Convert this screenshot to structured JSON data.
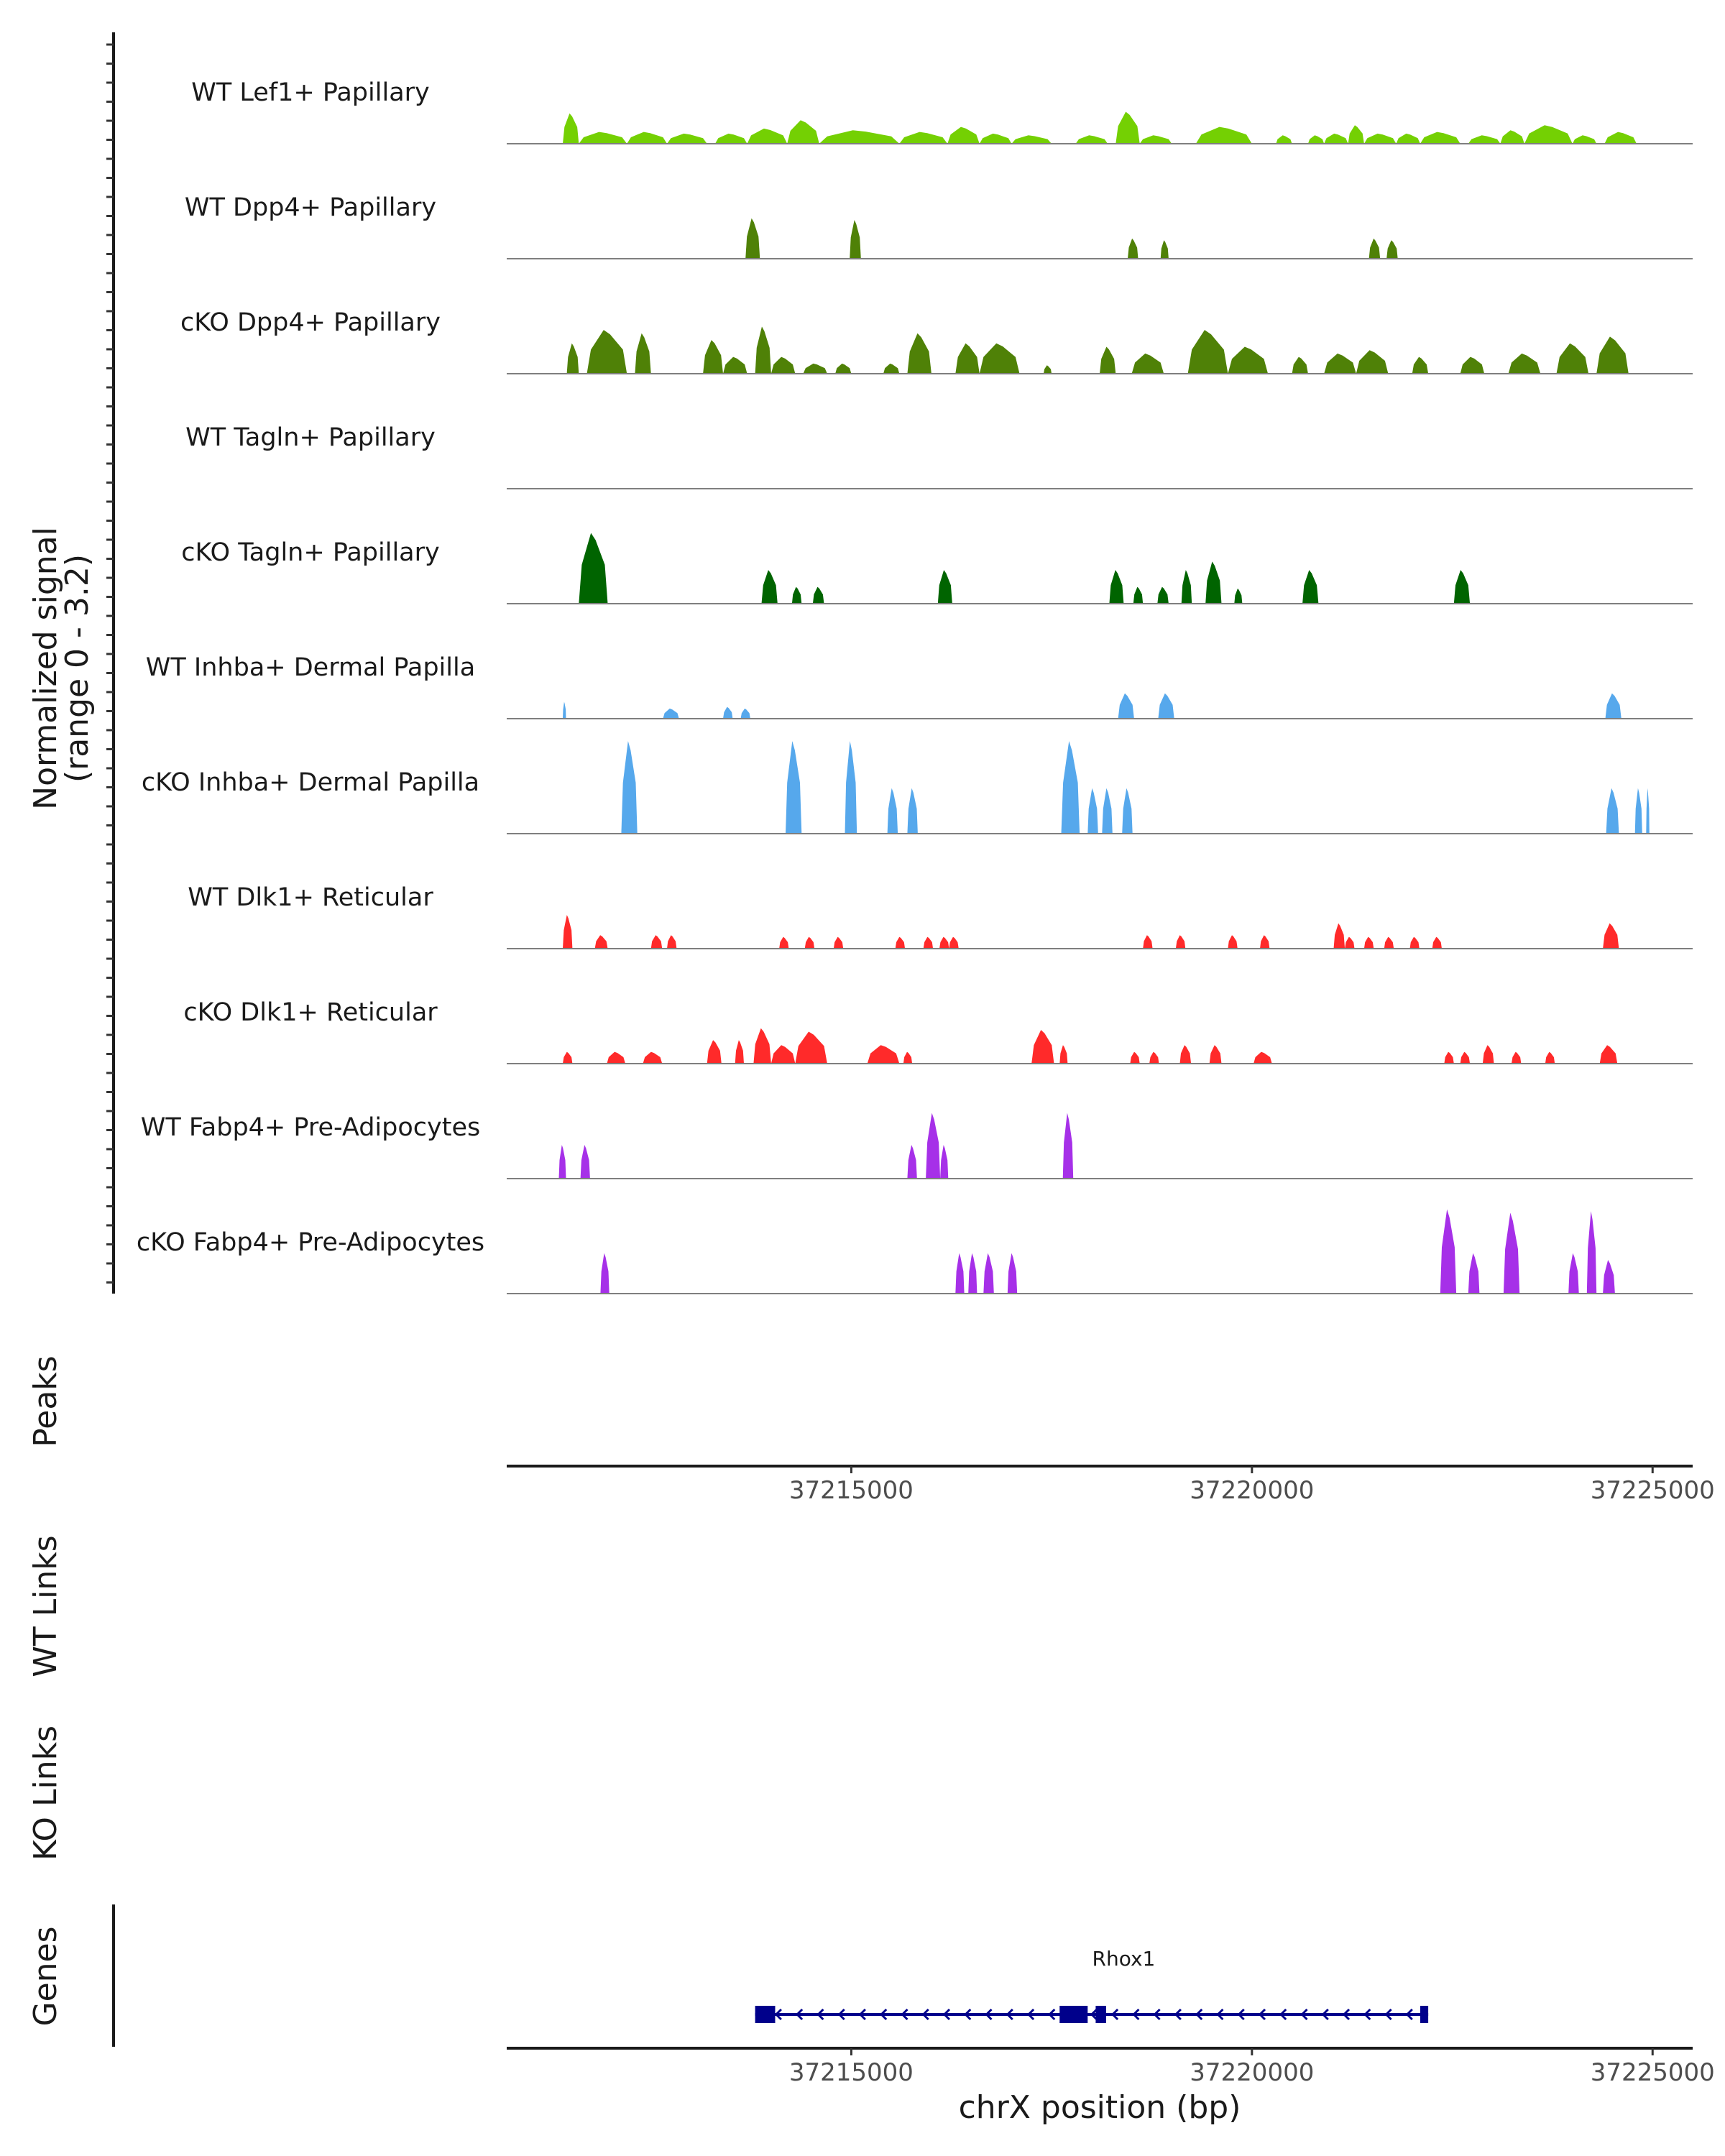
{
  "chart_data": {
    "type": "area",
    "title": "",
    "coverage_ylabel_line1": "Normalized signal",
    "coverage_ylabel_line2": "(range 0 - 3.2)",
    "signal_range": [
      0,
      3.2
    ],
    "xlabel": "chrX position (bp)",
    "xlim": [
      37210700,
      37225500
    ],
    "xticks": [
      37215000,
      37220000,
      37225000
    ],
    "xtick_labels": [
      "37215000",
      "37220000",
      "37225000"
    ],
    "grid": false,
    "legend": "none",
    "series": [
      {
        "name": "WT Lef1+ Papillary",
        "color": "#74D003",
        "peaks": [
          [
            37211400,
            37211600,
            0.9
          ],
          [
            37211600,
            37212200,
            0.35
          ],
          [
            37212200,
            37212700,
            0.35
          ],
          [
            37212700,
            37213200,
            0.3
          ],
          [
            37213300,
            37213700,
            0.3
          ],
          [
            37213700,
            37214200,
            0.45
          ],
          [
            37214200,
            37214600,
            0.7
          ],
          [
            37214600,
            37215600,
            0.4
          ],
          [
            37215600,
            37216200,
            0.35
          ],
          [
            37216200,
            37216600,
            0.5
          ],
          [
            37216600,
            37217000,
            0.3
          ],
          [
            37217000,
            37217500,
            0.25
          ],
          [
            37217800,
            37218200,
            0.25
          ],
          [
            37218300,
            37218600,
            0.95
          ],
          [
            37218600,
            37219000,
            0.25
          ],
          [
            37219300,
            37220000,
            0.5
          ],
          [
            37220300,
            37220500,
            0.25
          ],
          [
            37220700,
            37220900,
            0.25
          ],
          [
            37220900,
            37221200,
            0.3
          ],
          [
            37221200,
            37221400,
            0.55
          ],
          [
            37221400,
            37221800,
            0.3
          ],
          [
            37221800,
            37222100,
            0.3
          ],
          [
            37222100,
            37222600,
            0.35
          ],
          [
            37222700,
            37223100,
            0.25
          ],
          [
            37223100,
            37223400,
            0.4
          ],
          [
            37223400,
            37224000,
            0.55
          ],
          [
            37224000,
            37224300,
            0.25
          ],
          [
            37224400,
            37224800,
            0.35
          ]
        ]
      },
      {
        "name": "WT Dpp4+ Papillary",
        "color": "#4F8107",
        "peaks": [
          [
            37213680,
            37213860,
            1.2
          ],
          [
            37214980,
            37215120,
            1.15
          ],
          [
            37218450,
            37218580,
            0.6
          ],
          [
            37218860,
            37218960,
            0.55
          ],
          [
            37221460,
            37221600,
            0.6
          ],
          [
            37221680,
            37221820,
            0.55
          ]
        ]
      },
      {
        "name": "cKO Dpp4+ Papillary",
        "color": "#4F8107",
        "peaks": [
          [
            37211450,
            37211600,
            0.9
          ],
          [
            37211700,
            37212200,
            1.3
          ],
          [
            37212300,
            37212500,
            1.2
          ],
          [
            37213150,
            37213400,
            1.0
          ],
          [
            37213400,
            37213700,
            0.5
          ],
          [
            37213800,
            37214000,
            1.4
          ],
          [
            37214000,
            37214300,
            0.5
          ],
          [
            37214400,
            37214700,
            0.3
          ],
          [
            37214800,
            37215000,
            0.3
          ],
          [
            37215400,
            37215600,
            0.3
          ],
          [
            37215700,
            37216000,
            1.2
          ],
          [
            37216300,
            37216600,
            0.9
          ],
          [
            37216600,
            37217100,
            0.9
          ],
          [
            37217400,
            37217500,
            0.25
          ],
          [
            37218100,
            37218300,
            0.8
          ],
          [
            37218500,
            37218900,
            0.6
          ],
          [
            37219200,
            37219700,
            1.3
          ],
          [
            37219700,
            37220200,
            0.8
          ],
          [
            37220500,
            37220700,
            0.5
          ],
          [
            37220900,
            37221300,
            0.6
          ],
          [
            37221300,
            37221700,
            0.7
          ],
          [
            37222000,
            37222200,
            0.5
          ],
          [
            37222600,
            37222900,
            0.5
          ],
          [
            37223200,
            37223600,
            0.6
          ],
          [
            37223800,
            37224200,
            0.9
          ],
          [
            37224300,
            37224700,
            1.1
          ]
        ]
      },
      {
        "name": "WT Tagln+ Papillary",
        "color": "#006400",
        "peaks": []
      },
      {
        "name": "cKO Tagln+ Papillary",
        "color": "#006400",
        "peaks": [
          [
            37211600,
            37211960,
            2.1
          ],
          [
            37213880,
            37214080,
            1.0
          ],
          [
            37214260,
            37214380,
            0.5
          ],
          [
            37214520,
            37214660,
            0.5
          ],
          [
            37216080,
            37216260,
            1.0
          ],
          [
            37218220,
            37218400,
            1.0
          ],
          [
            37218520,
            37218640,
            0.5
          ],
          [
            37218820,
            37218960,
            0.5
          ],
          [
            37219120,
            37219250,
            1.0
          ],
          [
            37219420,
            37219620,
            1.25
          ],
          [
            37219780,
            37219880,
            0.45
          ],
          [
            37220630,
            37220830,
            1.0
          ],
          [
            37222520,
            37222720,
            1.0
          ]
        ]
      },
      {
        "name": "WT Inhba+ Dermal Papilla",
        "color": "#56A8EC",
        "peaks": [
          [
            37211400,
            37211440,
            0.5
          ],
          [
            37212650,
            37212850,
            0.3
          ],
          [
            37213400,
            37213520,
            0.35
          ],
          [
            37213620,
            37213740,
            0.3
          ],
          [
            37218330,
            37218530,
            0.75
          ],
          [
            37218830,
            37219030,
            0.75
          ],
          [
            37224410,
            37224610,
            0.75
          ]
        ]
      },
      {
        "name": "cKO Inhba+ Dermal Papilla",
        "color": "#56A8EC",
        "peaks": [
          [
            37212130,
            37212330,
            2.75
          ],
          [
            37214180,
            37214380,
            2.75
          ],
          [
            37214920,
            37215070,
            2.75
          ],
          [
            37215450,
            37215580,
            1.35
          ],
          [
            37215700,
            37215830,
            1.35
          ],
          [
            37217620,
            37217850,
            2.75
          ],
          [
            37217950,
            37218080,
            1.35
          ],
          [
            37218130,
            37218260,
            1.35
          ],
          [
            37218380,
            37218510,
            1.35
          ],
          [
            37224420,
            37224580,
            1.35
          ],
          [
            37224780,
            37224870,
            1.35
          ],
          [
            37224920,
            37224960,
            1.35
          ]
        ]
      },
      {
        "name": "WT Dlk1+ Reticular",
        "color": "#FF2A2A",
        "peaks": [
          [
            37211400,
            37211520,
            1.0
          ],
          [
            37211800,
            37211960,
            0.4
          ],
          [
            37212500,
            37212640,
            0.4
          ],
          [
            37212700,
            37212820,
            0.4
          ],
          [
            37214100,
            37214220,
            0.35
          ],
          [
            37214420,
            37214540,
            0.35
          ],
          [
            37214780,
            37214900,
            0.35
          ],
          [
            37215550,
            37215670,
            0.35
          ],
          [
            37215900,
            37216020,
            0.35
          ],
          [
            37216100,
            37216220,
            0.35
          ],
          [
            37216220,
            37216340,
            0.35
          ],
          [
            37218640,
            37218760,
            0.4
          ],
          [
            37219050,
            37219170,
            0.4
          ],
          [
            37219700,
            37219820,
            0.4
          ],
          [
            37220100,
            37220220,
            0.4
          ],
          [
            37221020,
            37221160,
            0.75
          ],
          [
            37221160,
            37221280,
            0.35
          ],
          [
            37221400,
            37221520,
            0.35
          ],
          [
            37221650,
            37221770,
            0.35
          ],
          [
            37221970,
            37222090,
            0.35
          ],
          [
            37222250,
            37222370,
            0.35
          ],
          [
            37224380,
            37224580,
            0.75
          ]
        ]
      },
      {
        "name": "cKO Dlk1+ Reticular",
        "color": "#FF2A2A",
        "peaks": [
          [
            37211400,
            37211520,
            0.35
          ],
          [
            37211950,
            37212180,
            0.35
          ],
          [
            37212400,
            37212640,
            0.35
          ],
          [
            37213200,
            37213380,
            0.7
          ],
          [
            37213550,
            37213660,
            0.7
          ],
          [
            37213780,
            37214000,
            1.05
          ],
          [
            37214000,
            37214300,
            0.55
          ],
          [
            37214300,
            37214700,
            0.95
          ],
          [
            37215200,
            37215600,
            0.55
          ],
          [
            37215650,
            37215760,
            0.35
          ],
          [
            37217250,
            37217530,
            1.0
          ],
          [
            37217600,
            37217700,
            0.55
          ],
          [
            37218480,
            37218600,
            0.35
          ],
          [
            37218720,
            37218840,
            0.35
          ],
          [
            37219100,
            37219240,
            0.55
          ],
          [
            37219470,
            37219620,
            0.55
          ],
          [
            37220020,
            37220250,
            0.35
          ],
          [
            37222400,
            37222520,
            0.35
          ],
          [
            37222600,
            37222720,
            0.35
          ],
          [
            37222880,
            37223020,
            0.55
          ],
          [
            37223240,
            37223360,
            0.35
          ],
          [
            37223660,
            37223780,
            0.35
          ],
          [
            37224340,
            37224560,
            0.55
          ]
        ]
      },
      {
        "name": "WT Fabp4+ Pre-Adipocytes",
        "color": "#A630E8",
        "peaks": [
          [
            37211350,
            37211440,
            1.0
          ],
          [
            37211620,
            37211740,
            1.0
          ],
          [
            37215700,
            37215820,
            1.0
          ],
          [
            37215930,
            37216110,
            1.95
          ],
          [
            37216110,
            37216210,
            1.0
          ],
          [
            37217640,
            37217770,
            1.95
          ]
        ]
      },
      {
        "name": "cKO Fabp4+ Pre-Adipocytes",
        "color": "#A630E8",
        "peaks": [
          [
            37211870,
            37211980,
            1.2
          ],
          [
            37216300,
            37216410,
            1.2
          ],
          [
            37216460,
            37216570,
            1.2
          ],
          [
            37216650,
            37216780,
            1.2
          ],
          [
            37216950,
            37217070,
            1.2
          ],
          [
            37222350,
            37222550,
            2.5
          ],
          [
            37222700,
            37222840,
            1.2
          ],
          [
            37223140,
            37223340,
            2.4
          ],
          [
            37223950,
            37224080,
            1.2
          ],
          [
            37224180,
            37224300,
            2.45
          ],
          [
            37224380,
            37224530,
            1.0
          ]
        ]
      }
    ],
    "peaks_track_label": "Peaks",
    "wt_links_label": "WT Links",
    "ko_links_label": "KO Links",
    "genes_track_label": "Genes",
    "gene": {
      "name": "Rhox1",
      "start": 37213800,
      "end": 37222200,
      "strand": "-",
      "exons": [
        [
          37213800,
          37214050
        ],
        [
          37217600,
          37217950
        ],
        [
          37218050,
          37218180
        ],
        [
          37222100,
          37222200
        ]
      ]
    }
  }
}
